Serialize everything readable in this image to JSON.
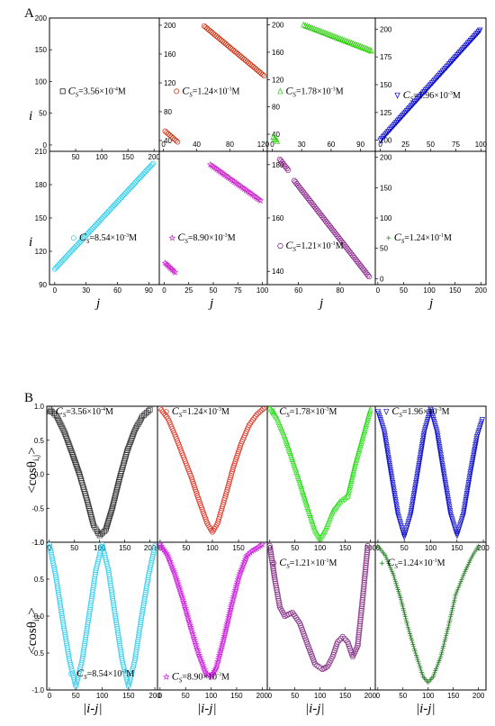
{
  "figure_a": {
    "letter": "A",
    "xlabel": "j",
    "ylabel": "i"
  },
  "figure_b": {
    "letter": "B",
    "xlabel": "|i-j|",
    "ylabel": "<cosθ",
    "ylabel_sub": "i,j",
    "ylabel_end": ">"
  },
  "chart_data": [
    {
      "panel": "A1",
      "type": "scatter",
      "marker": "square",
      "color": "#000000",
      "legend": {
        "prefix": "C",
        "sub": "S",
        "value": "=3.56×10",
        "exp": "-4",
        "unit": "M"
      },
      "xlim": [
        0,
        210
      ],
      "ylim": [
        -10,
        200
      ],
      "xticks": [
        50,
        100,
        150,
        200
      ],
      "yticks": [
        0,
        50,
        100,
        150,
        200
      ],
      "segments": []
    },
    {
      "panel": "A2",
      "type": "scatter",
      "marker": "circle",
      "color": "#cc2200",
      "legend": {
        "prefix": "C",
        "sub": "S",
        "value": "=1.24×10",
        "exp": "-3",
        "unit": "M"
      },
      "xlim": [
        -5,
        125
      ],
      "ylim": [
        25,
        210
      ],
      "xticks": [
        0,
        40,
        80,
        120
      ],
      "yticks": [
        40,
        80,
        120,
        160,
        200
      ],
      "segments": [
        {
          "x": [
            49,
            121
          ],
          "y": [
            199,
            130
          ]
        },
        {
          "x": [
            2,
            17
          ],
          "y": [
            53,
            38
          ]
        }
      ]
    },
    {
      "panel": "A3",
      "type": "scatter",
      "marker": "triangle",
      "color": "#22cc00",
      "legend": {
        "prefix": "C",
        "sub": "S",
        "value": "=1.78×10",
        "exp": "-3",
        "unit": "M"
      },
      "xlim": [
        -5,
        105
      ],
      "ylim": [
        15,
        210
      ],
      "xticks": [
        0,
        30,
        60,
        90
      ],
      "yticks": [
        40,
        80,
        120,
        160,
        200
      ],
      "segments": [
        {
          "x": [
            32,
            101
          ],
          "y": [
            200,
            162
          ]
        },
        {
          "x": [
            1,
            5
          ],
          "y": [
            36,
            30
          ]
        }
      ]
    },
    {
      "panel": "A4",
      "type": "scatter",
      "marker": "triangle-down",
      "color": "#0000cc",
      "legend": {
        "prefix": "C",
        "sub": "S",
        "value": "=1.96×10",
        "exp": "-3",
        "unit": "M"
      },
      "xlim": [
        -5,
        105
      ],
      "ylim": [
        90,
        210
      ],
      "xticks": [
        0,
        25,
        50,
        75,
        100
      ],
      "yticks": [
        100,
        125,
        150,
        175,
        200
      ],
      "segments": [
        {
          "x": [
            0,
            99
          ],
          "y": [
            100,
            199
          ]
        }
      ]
    },
    {
      "panel": "A5",
      "type": "scatter",
      "marker": "circle",
      "color": "#22ccee",
      "legend": {
        "prefix": "C",
        "sub": "S",
        "value": "=8.54×10",
        "exp": "-3",
        "unit": "M"
      },
      "xlim": [
        -5,
        100
      ],
      "ylim": [
        90,
        210
      ],
      "xticks": [
        0,
        30,
        60,
        90
      ],
      "yticks": [
        90,
        120,
        150,
        180,
        210
      ],
      "segments": [
        {
          "x": [
            0,
            94
          ],
          "y": [
            104,
            199
          ]
        }
      ]
    },
    {
      "panel": "A6",
      "type": "scatter",
      "marker": "star",
      "color": "#cc22cc",
      "legend": {
        "prefix": "C",
        "sub": "S",
        "value": "=8.90×10",
        "exp": "-3",
        "unit": "M"
      },
      "xlim": [
        -5,
        105
      ],
      "ylim": [
        80,
        210
      ],
      "xticks": [
        0,
        25,
        50,
        75,
        100
      ],
      "yticks": [],
      "segments": [
        {
          "x": [
            47,
            98
          ],
          "y": [
            197,
            162
          ]
        },
        {
          "x": [
            1,
            11
          ],
          "y": [
            101,
            92
          ]
        }
      ]
    },
    {
      "panel": "A7",
      "type": "scatter",
      "marker": "hexagon",
      "color": "#882288",
      "legend": {
        "prefix": "C",
        "sub": "S",
        "value": "=1.21×10",
        "exp": "-1",
        "unit": "M"
      },
      "xlim": [
        45,
        97
      ],
      "ylim": [
        135,
        185
      ],
      "xticks": [
        60,
        80
      ],
      "yticks": [
        140,
        160,
        180
      ],
      "segments": [
        {
          "x": [
            51,
            55
          ],
          "y": [
            182,
            178
          ]
        },
        {
          "x": [
            58,
            94
          ],
          "y": [
            174,
            138
          ]
        }
      ]
    },
    {
      "panel": "A8",
      "type": "scatter",
      "marker": "plus",
      "color": "#228822",
      "legend": {
        "prefix": "C",
        "sub": "S",
        "value": "=1.24×10",
        "exp": "-1",
        "unit": "M"
      },
      "xlim": [
        -5,
        210
      ],
      "ylim": [
        -10,
        210
      ],
      "xticks": [
        0,
        50,
        100,
        150,
        200
      ],
      "yticks": [
        0,
        50,
        100,
        150,
        200
      ],
      "segments": []
    },
    {
      "panel": "B1",
      "type": "scatter",
      "marker": "square",
      "color": "#333333",
      "legend": {
        "prefix": "C",
        "sub": "S",
        "value": "=3.56×10",
        "exp": "-4",
        "unit": "M"
      },
      "xlim": [
        -5,
        215
      ],
      "ylim": [
        -1.0,
        1.0
      ],
      "xticks": [
        0,
        50,
        100,
        150,
        200
      ],
      "yticks": [
        -1.0,
        -0.5,
        0.0,
        0.5,
        1.0
      ],
      "x": [
        0,
        15,
        30,
        45,
        60,
        75,
        88,
        100,
        112,
        125,
        140,
        155,
        170,
        185,
        200
      ],
      "y": [
        0.96,
        0.85,
        0.62,
        0.32,
        0.0,
        -0.38,
        -0.75,
        -0.9,
        -0.82,
        -0.5,
        -0.05,
        0.35,
        0.65,
        0.85,
        0.95
      ]
    },
    {
      "panel": "B2",
      "type": "scatter",
      "marker": "circle",
      "color": "#dd3322",
      "legend": {
        "prefix": "C",
        "sub": "S",
        "value": "=1.24×10",
        "exp": "-3",
        "unit": "M"
      },
      "xlim": [
        -5,
        205
      ],
      "ylim": [
        -1.0,
        1.0
      ],
      "xticks": [
        0,
        50,
        100,
        150
      ],
      "yticks": [],
      "x": [
        0,
        15,
        30,
        45,
        60,
        75,
        90,
        100,
        110,
        125,
        140,
        155,
        170,
        185,
        200
      ],
      "y": [
        0.97,
        0.82,
        0.55,
        0.25,
        -0.05,
        -0.4,
        -0.72,
        -0.85,
        -0.72,
        -0.32,
        0.1,
        0.45,
        0.72,
        0.88,
        0.98
      ]
    },
    {
      "panel": "B3",
      "type": "scatter",
      "marker": "triangle",
      "color": "#22dd11",
      "legend": {
        "prefix": "C",
        "sub": "S",
        "value": "=1.78×10",
        "exp": "-3",
        "unit": "M"
      },
      "xlim": [
        -5,
        210
      ],
      "ylim": [
        -1.0,
        1.0
      ],
      "xticks": [
        0,
        50,
        100,
        150,
        200
      ],
      "yticks": [],
      "x": [
        0,
        15,
        30,
        45,
        60,
        75,
        90,
        100,
        110,
        125,
        140,
        155,
        170,
        185,
        200
      ],
      "y": [
        0.98,
        0.82,
        0.55,
        0.22,
        -0.12,
        -0.48,
        -0.82,
        -0.95,
        -0.82,
        -0.55,
        -0.4,
        -0.32,
        0.15,
        0.55,
        0.95
      ]
    },
    {
      "panel": "B4",
      "type": "scatter",
      "marker": "triangle-down",
      "color": "#1111cc",
      "legend": {
        "prefix": "C",
        "sub": "S",
        "value": "=1.96×10",
        "exp": "-3",
        "unit": "M"
      },
      "xlim": [
        -5,
        205
      ],
      "ylim": [
        -1.0,
        1.0
      ],
      "xticks": [
        0,
        50,
        100,
        150,
        200
      ],
      "yticks": [],
      "x": [
        0,
        12,
        25,
        38,
        50,
        62,
        75,
        88,
        100,
        112,
        125,
        138,
        150,
        162,
        175,
        188,
        198
      ],
      "y": [
        0.92,
        0.62,
        0.0,
        -0.6,
        -0.92,
        -0.6,
        0.0,
        0.62,
        0.95,
        0.62,
        0.0,
        -0.6,
        -0.9,
        -0.6,
        0.0,
        0.55,
        0.8
      ]
    },
    {
      "panel": "B5",
      "type": "scatter",
      "marker": "circle",
      "color": "#33ccee",
      "legend": {
        "prefix": "C",
        "sub": "S",
        "value": "=8.54×10",
        "exp": "-3",
        "unit": "M"
      },
      "xlim": [
        -5,
        205
      ],
      "ylim": [
        -1.0,
        1.0
      ],
      "xticks": [
        0,
        50,
        100,
        150,
        200
      ],
      "yticks": [
        -1.0,
        -0.5,
        0.0,
        0.5,
        1.0
      ],
      "x": [
        0,
        12,
        25,
        38,
        50,
        62,
        75,
        88,
        100,
        112,
        125,
        138,
        150,
        162,
        175,
        188,
        200
      ],
      "y": [
        0.97,
        0.55,
        -0.05,
        -0.6,
        -0.95,
        -0.6,
        0.0,
        0.62,
        0.97,
        0.62,
        0.0,
        -0.6,
        -0.95,
        -0.6,
        0.0,
        0.55,
        0.95
      ]
    },
    {
      "panel": "B6",
      "type": "scatter",
      "marker": "star",
      "color": "#cc22dd",
      "legend": {
        "prefix": "C",
        "sub": "S",
        "value": "=8.90×10",
        "exp": "-3",
        "unit": "M"
      },
      "xlim": [
        -5,
        210
      ],
      "ylim": [
        -1.0,
        1.0
      ],
      "xticks": [
        0,
        50,
        100,
        150,
        200
      ],
      "yticks": [],
      "x": [
        0,
        15,
        30,
        45,
        60,
        75,
        90,
        100,
        110,
        125,
        140,
        155,
        170,
        180,
        190,
        200
      ],
      "y": [
        0.97,
        0.82,
        0.55,
        0.22,
        -0.15,
        -0.5,
        -0.78,
        -0.82,
        -0.7,
        -0.3,
        0.15,
        0.55,
        0.82,
        0.88,
        0.92,
        0.97
      ]
    },
    {
      "panel": "B7",
      "type": "scatter",
      "marker": "hexagon",
      "color": "#883388",
      "legend": {
        "prefix": "C",
        "sub": "S",
        "value": "=1.21×10",
        "exp": "-1",
        "unit": "M"
      },
      "xlim": [
        -5,
        210
      ],
      "ylim": [
        -1.0,
        1.0
      ],
      "xticks": [
        0,
        50,
        100,
        150,
        200
      ],
      "yticks": [],
      "x": [
        0,
        10,
        20,
        30,
        45,
        60,
        75,
        90,
        105,
        115,
        125,
        135,
        145,
        155,
        165,
        175,
        185,
        195
      ],
      "y": [
        0.95,
        0.5,
        0.12,
        0.0,
        0.05,
        -0.1,
        -0.38,
        -0.65,
        -0.72,
        -0.68,
        -0.55,
        -0.35,
        -0.28,
        -0.35,
        -0.55,
        -0.4,
        0.25,
        0.95
      ]
    },
    {
      "panel": "B8",
      "type": "scatter",
      "marker": "plus",
      "color": "#227722",
      "legend": {
        "prefix": "C",
        "sub": "S",
        "value": "=1.24×10",
        "exp": "-1",
        "unit": "M"
      },
      "xlim": [
        -5,
        215
      ],
      "ylim": [
        -1.0,
        1.0
      ],
      "xticks": [
        0,
        50,
        100,
        150,
        200
      ],
      "yticks": [],
      "x": [
        0,
        15,
        30,
        45,
        60,
        75,
        90,
        100,
        110,
        125,
        140,
        155,
        170,
        185,
        200
      ],
      "y": [
        0.95,
        0.82,
        0.58,
        0.25,
        -0.15,
        -0.5,
        -0.82,
        -0.9,
        -0.82,
        -0.55,
        -0.15,
        0.3,
        0.55,
        0.78,
        0.95
      ]
    }
  ]
}
